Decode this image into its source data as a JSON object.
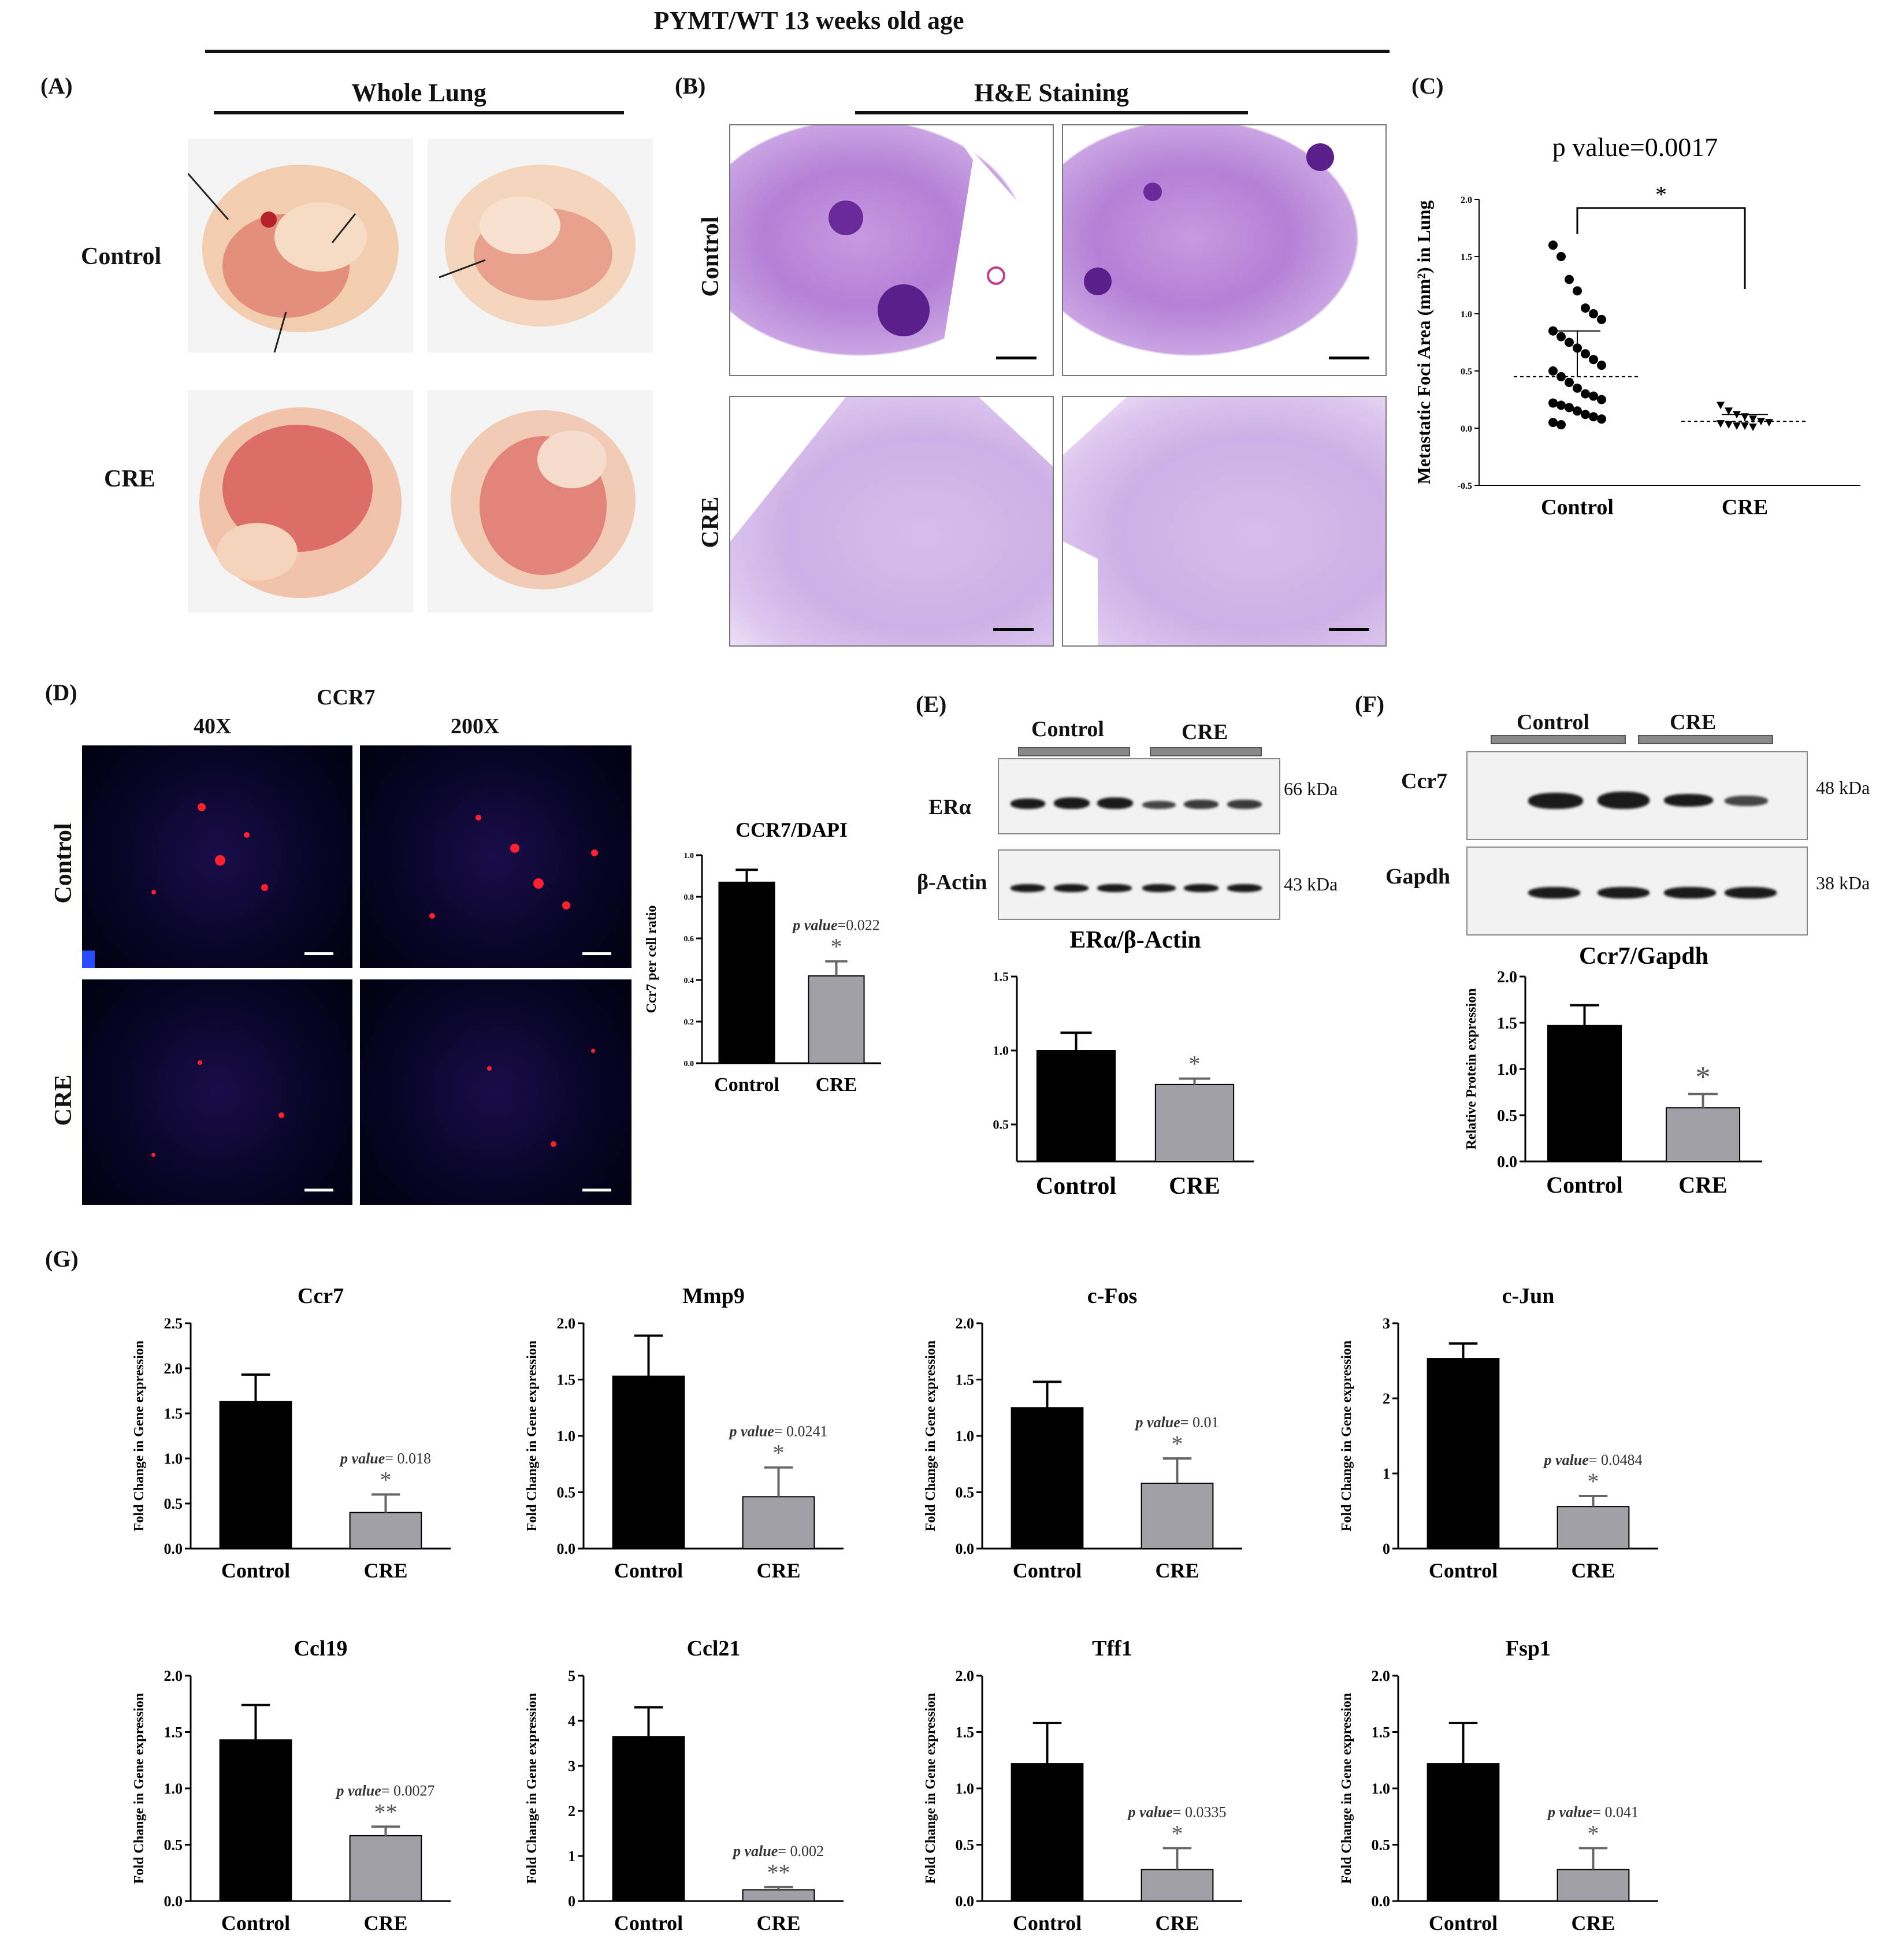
{
  "figure": {
    "title": "PYMT/WT 13 weeks old age",
    "panels": {
      "A": {
        "letter": "(A)",
        "header": "Whole Lung",
        "row_labels": [
          "Control",
          "CRE"
        ]
      },
      "B": {
        "letter": "(B)",
        "header": "H&E Staining",
        "row_labels": [
          "Control",
          "CRE"
        ]
      },
      "C": {
        "letter": "(C)"
      },
      "D": {
        "letter": "(D)",
        "stain": "CCR7",
        "mag": [
          "40X",
          "200X"
        ],
        "row_labels": [
          "Control",
          "CRE"
        ]
      },
      "E": {
        "letter": "(E)",
        "groups": [
          "Control",
          "CRE"
        ],
        "bands": [
          "ERα",
          "β-Actin"
        ],
        "kda": [
          "66 kDa",
          "43 kDa"
        ]
      },
      "F": {
        "letter": "(F)",
        "groups": [
          "Control",
          "CRE"
        ],
        "bands": [
          "Ccr7",
          "Gapdh"
        ],
        "kda": [
          "48 kDa",
          "38 kDa"
        ]
      },
      "G": {
        "letter": "(G)"
      }
    }
  },
  "chart_data": [
    {
      "id": "C",
      "type": "scatter",
      "title": "p value=0.0017",
      "annotation": "*",
      "ylabel": "Metastatic Foci Area (mm²) in Lung",
      "categories": [
        "Control",
        "CRE"
      ],
      "ylim": [
        -0.5,
        2.0
      ],
      "yticks": [
        "-0.5",
        "0.0",
        "0.5",
        "1.0",
        "1.5",
        "2.0"
      ],
      "series": [
        {
          "name": "Control",
          "points": [
            1.6,
            1.5,
            1.3,
            1.2,
            1.05,
            1.0,
            0.95,
            0.85,
            0.8,
            0.75,
            0.7,
            0.65,
            0.6,
            0.55,
            0.5,
            0.45,
            0.4,
            0.35,
            0.3,
            0.28,
            0.25,
            0.22,
            0.2,
            0.18,
            0.15,
            0.12,
            0.1,
            0.08,
            0.05,
            0.03
          ],
          "mean": 0.45,
          "sd_top": 0.85
        },
        {
          "name": "CRE",
          "points": [
            0.2,
            0.15,
            0.12,
            0.1,
            0.08,
            0.06,
            0.05,
            0.04,
            0.03,
            0.02,
            0.02,
            0.01
          ],
          "mean": 0.06,
          "sd_top": 0.12
        }
      ]
    },
    {
      "id": "D",
      "type": "bar",
      "title": "CCR7/DAPI",
      "ylabel": "Ccr7 per cell ratio",
      "categories": [
        "Control",
        "CRE"
      ],
      "values": [
        0.87,
        0.42
      ],
      "errors": [
        0.06,
        0.07
      ],
      "ylim": [
        0,
        1.0
      ],
      "yticks": [
        "0.0",
        "0.2",
        "0.4",
        "0.6",
        "0.8",
        "1.0"
      ],
      "pvalue_prefix": "p value",
      "pvalue": "=0.022",
      "sig": "*"
    },
    {
      "id": "E",
      "type": "bar",
      "title": "ERα/β-Actin",
      "ylabel": "",
      "categories": [
        "Control",
        "CRE"
      ],
      "values": [
        1.0,
        0.77
      ],
      "errors": [
        0.12,
        0.04
      ],
      "ylim": [
        0.25,
        1.5
      ],
      "yticks": [
        "0.5",
        "1.0",
        "1.5"
      ],
      "sig": "*"
    },
    {
      "id": "F",
      "type": "bar",
      "title": "Ccr7/Gapdh",
      "ylabel": "Relative Protein expression",
      "categories": [
        "Control",
        "CRE"
      ],
      "values": [
        1.47,
        0.58
      ],
      "errors": [
        0.22,
        0.15
      ],
      "ylim": [
        0,
        2.0
      ],
      "yticks": [
        "0.0",
        "0.5",
        "1.0",
        "1.5",
        "2.0"
      ],
      "sig": "*"
    },
    {
      "id": "G1",
      "type": "bar",
      "title": "Ccr7",
      "ylabel": "Fold Change in Gene expression",
      "categories": [
        "Control",
        "CRE"
      ],
      "values": [
        1.63,
        0.4
      ],
      "errors": [
        0.3,
        0.2
      ],
      "ylim": [
        0,
        2.5
      ],
      "yticks": [
        "0.0",
        "0.5",
        "1.0",
        "1.5",
        "2.0",
        "2.5"
      ],
      "pvalue_prefix": "p value",
      "pvalue": "= 0.018",
      "sig": "*"
    },
    {
      "id": "G2",
      "type": "bar",
      "title": "Mmp9",
      "ylabel": "Fold Change in Gene expression",
      "categories": [
        "Control",
        "CRE"
      ],
      "values": [
        1.53,
        0.46
      ],
      "errors": [
        0.36,
        0.26
      ],
      "ylim": [
        0,
        2.0
      ],
      "yticks": [
        "0.0",
        "0.5",
        "1.0",
        "1.5",
        "2.0"
      ],
      "pvalue_prefix": "p value",
      "pvalue": "= 0.0241",
      "sig": "*"
    },
    {
      "id": "G3",
      "type": "bar",
      "title": "c-Fos",
      "ylabel": "Fold Change in Gene expression",
      "categories": [
        "Control",
        "CRE"
      ],
      "values": [
        1.25,
        0.58
      ],
      "errors": [
        0.23,
        0.22
      ],
      "ylim": [
        0,
        2.0
      ],
      "yticks": [
        "0.0",
        "0.5",
        "1.0",
        "1.5",
        "2.0"
      ],
      "pvalue_prefix": "p value",
      "pvalue": "= 0.01",
      "sig": "*"
    },
    {
      "id": "G4",
      "type": "bar",
      "title": "c-Jun",
      "ylabel": "Fold Change in Gene expression",
      "categories": [
        "Control",
        "CRE"
      ],
      "values": [
        2.53,
        0.56
      ],
      "errors": [
        0.2,
        0.14
      ],
      "ylim": [
        0,
        3
      ],
      "yticks": [
        "0",
        "1",
        "2",
        "3"
      ],
      "pvalue_prefix": "p value",
      "pvalue": "= 0.0484",
      "sig": "*"
    },
    {
      "id": "G5",
      "type": "bar",
      "title": "Ccl19",
      "ylabel": "Fold Change in Gene expression",
      "categories": [
        "Control",
        "CRE"
      ],
      "values": [
        1.43,
        0.58
      ],
      "errors": [
        0.31,
        0.08
      ],
      "ylim": [
        0,
        2.0
      ],
      "yticks": [
        "0.0",
        "0.5",
        "1.0",
        "1.5",
        "2.0"
      ],
      "pvalue_prefix": "p value",
      "pvalue": "= 0.0027",
      "sig": "**"
    },
    {
      "id": "G6",
      "type": "bar",
      "title": "Ccl21",
      "ylabel": "Fold Change in Gene expression",
      "categories": [
        "Control",
        "CRE"
      ],
      "values": [
        3.65,
        0.25
      ],
      "errors": [
        0.65,
        0.06
      ],
      "ylim": [
        0,
        5
      ],
      "yticks": [
        "0",
        "1",
        "2",
        "3",
        "4",
        "5"
      ],
      "pvalue_prefix": "p value",
      "pvalue": "= 0.002",
      "sig": "**"
    },
    {
      "id": "G7",
      "type": "bar",
      "title": "Tff1",
      "ylabel": "Fold Change in Gene expression",
      "categories": [
        "Control",
        "CRE"
      ],
      "values": [
        1.22,
        0.28
      ],
      "errors": [
        0.36,
        0.19
      ],
      "ylim": [
        0,
        2.0
      ],
      "yticks": [
        "0.0",
        "0.5",
        "1.0",
        "1.5",
        "2.0"
      ],
      "pvalue_prefix": "p value",
      "pvalue": "= 0.0335",
      "sig": "*"
    },
    {
      "id": "G8",
      "type": "bar",
      "title": "Fsp1",
      "ylabel": "Fold Change in Gene expression",
      "categories": [
        "Control",
        "CRE"
      ],
      "values": [
        1.22,
        0.28
      ],
      "errors": [
        0.36,
        0.19
      ],
      "ylim": [
        0,
        2.0
      ],
      "yticks": [
        "0.0",
        "0.5",
        "1.0",
        "1.5",
        "2.0"
      ],
      "pvalue_prefix": "p value",
      "pvalue": "= 0.041",
      "sig": "*"
    }
  ]
}
